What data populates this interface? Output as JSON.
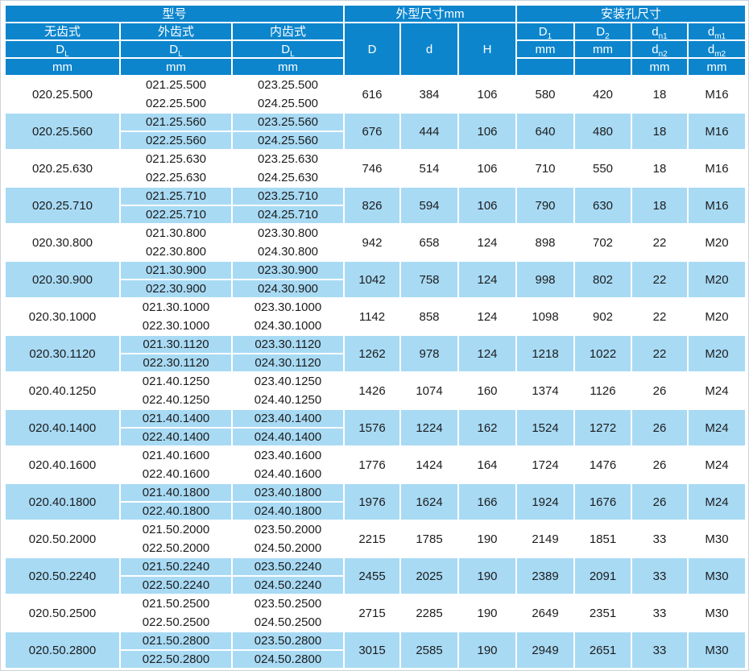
{
  "colors": {
    "header_bg": "#0c85cd",
    "header_text": "#ffffff",
    "row_bg": "#ffffff",
    "row_alt_bg": "#a8daf4",
    "grid_border": "#ffffff",
    "body_text": "#1c1c1c",
    "outer_border": "#ccd4da"
  },
  "header": {
    "groups": {
      "model": "型号",
      "outer_dims": "外型尺寸mm",
      "mount_holes": "安装孔尺寸"
    },
    "model_columns": [
      {
        "label": "无齿式",
        "symbol": "D",
        "subscript": "L",
        "unit": "mm"
      },
      {
        "label": "外齿式",
        "symbol": "D",
        "subscript": "L",
        "unit": "mm"
      },
      {
        "label": "内齿式",
        "symbol": "D",
        "subscript": "L",
        "unit": "mm"
      }
    ],
    "dim_columns": [
      {
        "symbol": "D"
      },
      {
        "symbol": "d"
      },
      {
        "symbol": "H"
      }
    ],
    "hole_columns": [
      {
        "symbol1": "D",
        "subscript1": "1",
        "row3_text": "mm",
        "row4_text": ""
      },
      {
        "symbol1": "D",
        "subscript1": "2",
        "row3_text": "mm",
        "row4_text": ""
      },
      {
        "symbol1": "d",
        "subscript1": "n1",
        "symbol2": "d",
        "subscript2": "n2",
        "row4_text": "mm"
      },
      {
        "symbol1": "d",
        "subscript1": "m1",
        "symbol2": "d",
        "subscript2": "m2",
        "row4_text": "mm"
      }
    ]
  },
  "rows": [
    {
      "toothless": "020.25.500",
      "external": [
        "021.25.500",
        "022.25.500"
      ],
      "internal": [
        "023.25.500",
        "024.25.500"
      ],
      "D": "616",
      "d": "384",
      "H": "106",
      "D1": "580",
      "D2": "420",
      "dn": "18",
      "dm": "M16"
    },
    {
      "toothless": "020.25.560",
      "external": [
        "021.25.560",
        "022.25.560"
      ],
      "internal": [
        "023.25.560",
        "024.25.560"
      ],
      "D": "676",
      "d": "444",
      "H": "106",
      "D1": "640",
      "D2": "480",
      "dn": "18",
      "dm": "M16"
    },
    {
      "toothless": "020.25.630",
      "external": [
        "021.25.630",
        "022.25.630"
      ],
      "internal": [
        "023.25.630",
        "024.25.630"
      ],
      "D": "746",
      "d": "514",
      "H": "106",
      "D1": "710",
      "D2": "550",
      "dn": "18",
      "dm": "M16"
    },
    {
      "toothless": "020.25.710",
      "external": [
        "021.25.710",
        "022.25.710"
      ],
      "internal": [
        "023.25.710",
        "024.25.710"
      ],
      "D": "826",
      "d": "594",
      "H": "106",
      "D1": "790",
      "D2": "630",
      "dn": "18",
      "dm": "M16"
    },
    {
      "toothless": "020.30.800",
      "external": [
        "021.30.800",
        "022.30.800"
      ],
      "internal": [
        "023.30.800",
        "024.30.800"
      ],
      "D": "942",
      "d": "658",
      "H": "124",
      "D1": "898",
      "D2": "702",
      "dn": "22",
      "dm": "M20"
    },
    {
      "toothless": "020.30.900",
      "external": [
        "021.30.900",
        "022.30.900"
      ],
      "internal": [
        "023.30.900",
        "024.30.900"
      ],
      "D": "1042",
      "d": "758",
      "H": "124",
      "D1": "998",
      "D2": "802",
      "dn": "22",
      "dm": "M20"
    },
    {
      "toothless": "020.30.1000",
      "external": [
        "021.30.1000",
        "022.30.1000"
      ],
      "internal": [
        "023.30.1000",
        "024.30.1000"
      ],
      "D": "1142",
      "d": "858",
      "H": "124",
      "D1": "1098",
      "D2": "902",
      "dn": "22",
      "dm": "M20"
    },
    {
      "toothless": "020.30.1120",
      "external": [
        "021.30.1120",
        "022.30.1120"
      ],
      "internal": [
        "023.30.1120",
        "024.30.1120"
      ],
      "D": "1262",
      "d": "978",
      "H": "124",
      "D1": "1218",
      "D2": "1022",
      "dn": "22",
      "dm": "M20"
    },
    {
      "toothless": "020.40.1250",
      "external": [
        "021.40.1250",
        "022.40.1250"
      ],
      "internal": [
        "023.40.1250",
        "024.40.1250"
      ],
      "D": "1426",
      "d": "1074",
      "H": "160",
      "D1": "1374",
      "D2": "1126",
      "dn": "26",
      "dm": "M24"
    },
    {
      "toothless": "020.40.1400",
      "external": [
        "021.40.1400",
        "022.40.1400"
      ],
      "internal": [
        "023.40.1400",
        "024.40.1400"
      ],
      "D": "1576",
      "d": "1224",
      "H": "162",
      "D1": "1524",
      "D2": "1272",
      "dn": "26",
      "dm": "M24"
    },
    {
      "toothless": "020.40.1600",
      "external": [
        "021.40.1600",
        "022.40.1600"
      ],
      "internal": [
        "023.40.1600",
        "024.40.1600"
      ],
      "D": "1776",
      "d": "1424",
      "H": "164",
      "D1": "1724",
      "D2": "1476",
      "dn": "26",
      "dm": "M24"
    },
    {
      "toothless": "020.40.1800",
      "external": [
        "021.40.1800",
        "022.40.1800"
      ],
      "internal": [
        "023.40.1800",
        "024.40.1800"
      ],
      "D": "1976",
      "d": "1624",
      "H": "166",
      "D1": "1924",
      "D2": "1676",
      "dn": "26",
      "dm": "M24"
    },
    {
      "toothless": "020.50.2000",
      "external": [
        "021.50.2000",
        "022.50.2000"
      ],
      "internal": [
        "023.50.2000",
        "024.50.2000"
      ],
      "D": "2215",
      "d": "1785",
      "H": "190",
      "D1": "2149",
      "D2": "1851",
      "dn": "33",
      "dm": "M30"
    },
    {
      "toothless": "020.50.2240",
      "external": [
        "021.50.2240",
        "022.50.2240"
      ],
      "internal": [
        "023.50.2240",
        "024.50.2240"
      ],
      "D": "2455",
      "d": "2025",
      "H": "190",
      "D1": "2389",
      "D2": "2091",
      "dn": "33",
      "dm": "M30"
    },
    {
      "toothless": "020.50.2500",
      "external": [
        "021.50.2500",
        "022.50.2500"
      ],
      "internal": [
        "023.50.2500",
        "024.50.2500"
      ],
      "D": "2715",
      "d": "2285",
      "H": "190",
      "D1": "2649",
      "D2": "2351",
      "dn": "33",
      "dm": "M30"
    },
    {
      "toothless": "020.50.2800",
      "external": [
        "021.50.2800",
        "022.50.2800"
      ],
      "internal": [
        "023.50.2800",
        "024.50.2800"
      ],
      "D": "3015",
      "d": "2585",
      "H": "190",
      "D1": "2949",
      "D2": "2651",
      "dn": "33",
      "dm": "M30"
    }
  ]
}
